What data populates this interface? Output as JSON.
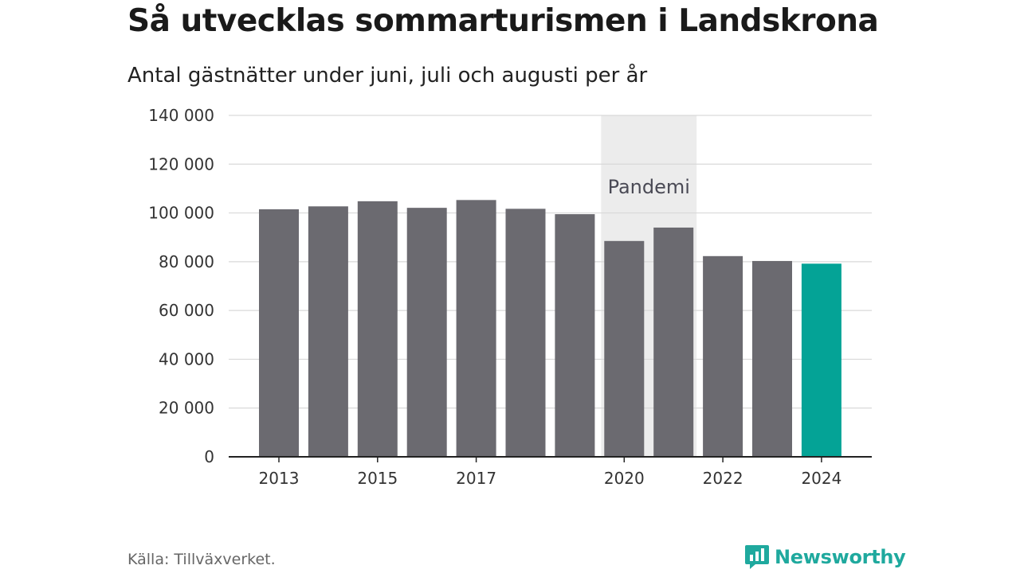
{
  "title": "Så utvecklas sommarturismen i Landskrona",
  "subtitle": "Antal gästnätter under juni, juli och augusti per år",
  "source": "Källa: Tillväxverket.",
  "brand": {
    "name": "Newsworthy",
    "icon": "newsworthy-logo-icon",
    "color": "#1fa99e"
  },
  "chart_data": {
    "type": "bar",
    "categories": [
      "2013",
      "2014",
      "2015",
      "2016",
      "2017",
      "2018",
      "2019",
      "2020",
      "2021",
      "2022",
      "2023",
      "2024"
    ],
    "values": [
      101500,
      102700,
      104800,
      102100,
      105300,
      101700,
      99500,
      88500,
      94000,
      82300,
      80300,
      79200
    ],
    "x_tick_labels": [
      "2013",
      "2015",
      "2017",
      "2020",
      "2022",
      "2024"
    ],
    "y_ticks": [
      0,
      20000,
      40000,
      60000,
      80000,
      100000,
      120000,
      140000
    ],
    "y_tick_labels": [
      "0",
      "20 000",
      "40 000",
      "60 000",
      "80 000",
      "100 000",
      "120 000",
      "140 000"
    ],
    "ylim": [
      0,
      140000
    ],
    "xlabel": "",
    "ylabel": "",
    "grid": true,
    "highlight": {
      "category": "2024",
      "color": "#04a396"
    },
    "bar_color": "#6b6a70",
    "shaded_region": {
      "from": "2020",
      "to": "2021",
      "label": "Pandemi",
      "color": "#ececec"
    }
  }
}
